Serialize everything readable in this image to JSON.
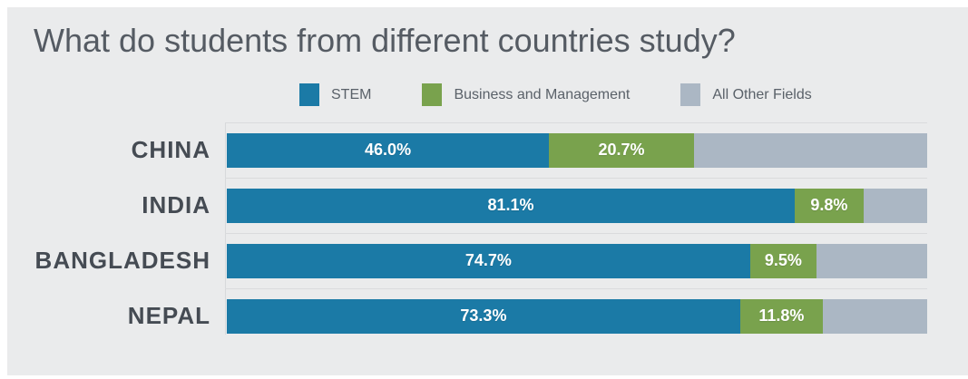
{
  "title": "What do students from different countries study?",
  "colors": {
    "stem": "#1b7aa6",
    "business": "#79a24d",
    "other": "#abb7c4",
    "background": "#eaebec",
    "title_text": "#555b63",
    "label_text": "#454b53",
    "gridline": "#dadbdd"
  },
  "legend": {
    "items": [
      {
        "label": "STEM",
        "series": "stem"
      },
      {
        "label": "Business and Management",
        "series": "business"
      },
      {
        "label": "All Other Fields",
        "series": "other"
      }
    ]
  },
  "chart_data": {
    "type": "bar",
    "orientation": "horizontal",
    "stacked": true,
    "x_range_percent": [
      0,
      100
    ],
    "grid": "row-separators",
    "legend_position": "top-center",
    "categories": [
      "CHINA",
      "INDIA",
      "BANGLADESH",
      "NEPAL"
    ],
    "series": [
      {
        "name": "STEM",
        "values": [
          46.0,
          81.1,
          74.7,
          73.3
        ]
      },
      {
        "name": "Business and Management",
        "values": [
          20.7,
          9.8,
          9.5,
          11.8
        ]
      },
      {
        "name": "All Other Fields",
        "values": [
          33.3,
          9.1,
          15.8,
          14.9
        ]
      }
    ],
    "bars": [
      {
        "country": "CHINA",
        "segments": [
          {
            "series": "stem",
            "value": 46.0,
            "label": "46.0%"
          },
          {
            "series": "business",
            "value": 20.7,
            "label": "20.7%"
          },
          {
            "series": "other",
            "value": 33.3,
            "label": ""
          }
        ]
      },
      {
        "country": "INDIA",
        "segments": [
          {
            "series": "stem",
            "value": 81.1,
            "label": "81.1%"
          },
          {
            "series": "business",
            "value": 9.8,
            "label": "9.8%"
          },
          {
            "series": "other",
            "value": 9.1,
            "label": ""
          }
        ]
      },
      {
        "country": "BANGLADESH",
        "segments": [
          {
            "series": "stem",
            "value": 74.7,
            "label": "74.7%"
          },
          {
            "series": "business",
            "value": 9.5,
            "label": "9.5%"
          },
          {
            "series": "other",
            "value": 15.8,
            "label": ""
          }
        ]
      },
      {
        "country": "NEPAL",
        "segments": [
          {
            "series": "stem",
            "value": 73.3,
            "label": "73.3%"
          },
          {
            "series": "business",
            "value": 11.8,
            "label": "11.8%"
          },
          {
            "series": "other",
            "value": 14.9,
            "label": ""
          }
        ]
      }
    ]
  }
}
